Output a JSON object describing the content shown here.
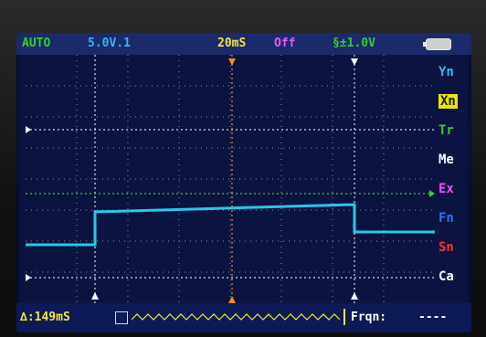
{
  "topbar": {
    "mode": "AUTO",
    "volt_div": "5.0V.1",
    "time_div": "20mS",
    "ch_state": "Off",
    "trigger": "§±1.0V"
  },
  "menu": [
    {
      "label": "Yn",
      "color": "#37b7f0"
    },
    {
      "label": "Xn",
      "color": "#1b1b1b",
      "bg": "#e8e800"
    },
    {
      "label": "Tr",
      "color": "#33cc33"
    },
    {
      "label": "Me",
      "color": "#ffffff"
    },
    {
      "label": "Ex",
      "color": "#ff44ff"
    },
    {
      "label": "Fn",
      "color": "#3b6cff"
    },
    {
      "label": "Sn",
      "color": "#ff3333"
    },
    {
      "label": "Ca",
      "color": "#ffffff"
    }
  ],
  "bottombar": {
    "delta_time": "∆:149mS",
    "freq_label": "Frqn:",
    "freq_value": "----"
  },
  "colors": {
    "grid": "#c8c8c8",
    "signal": "#29c8e8",
    "trigger_line": "#3ccc3c",
    "time_cursor": "#ff8a1a",
    "marker": "#ffffff"
  }
}
